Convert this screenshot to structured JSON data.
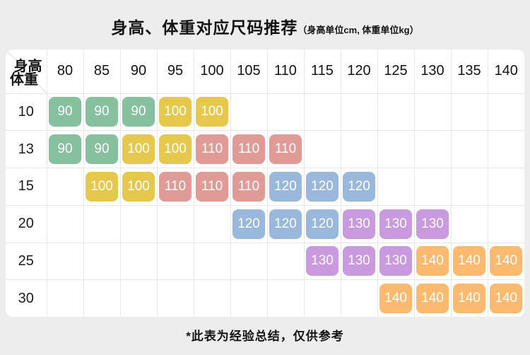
{
  "page": {
    "background": "#ededed"
  },
  "chart_data": {
    "type": "table",
    "title": "身高、体重对应尺码推荐",
    "subtitle": "（身高单位cm, 体重单位kg）",
    "corner": {
      "top_label": "身高",
      "bottom_label": "体重"
    },
    "columns": [
      "80",
      "85",
      "90",
      "95",
      "100",
      "105",
      "110",
      "115",
      "120",
      "125",
      "130",
      "135",
      "140"
    ],
    "rows": [
      {
        "label": "10",
        "cells": [
          [
            "90",
            "green"
          ],
          [
            "90",
            "green"
          ],
          [
            "90",
            "green"
          ],
          [
            "100",
            "yellow"
          ],
          [
            "100",
            "yellow"
          ],
          null,
          null,
          null,
          null,
          null,
          null,
          null,
          null
        ]
      },
      {
        "label": "13",
        "cells": [
          [
            "90",
            "green"
          ],
          [
            "90",
            "green"
          ],
          [
            "100",
            "yellow"
          ],
          [
            "100",
            "yellow"
          ],
          [
            "110",
            "pink"
          ],
          [
            "110",
            "pink"
          ],
          [
            "110",
            "pink"
          ],
          null,
          null,
          null,
          null,
          null,
          null
        ]
      },
      {
        "label": "15",
        "cells": [
          null,
          [
            "100",
            "yellow"
          ],
          [
            "100",
            "yellow"
          ],
          [
            "110",
            "pink"
          ],
          [
            "110",
            "pink"
          ],
          [
            "110",
            "pink"
          ],
          [
            "120",
            "blue"
          ],
          [
            "120",
            "blue"
          ],
          [
            "120",
            "blue"
          ],
          null,
          null,
          null,
          null
        ]
      },
      {
        "label": "20",
        "cells": [
          null,
          null,
          null,
          null,
          null,
          [
            "120",
            "blue"
          ],
          [
            "120",
            "blue"
          ],
          [
            "120",
            "blue"
          ],
          [
            "130",
            "purple"
          ],
          [
            "130",
            "purple"
          ],
          [
            "130",
            "purple"
          ],
          null,
          null
        ]
      },
      {
        "label": "25",
        "cells": [
          null,
          null,
          null,
          null,
          null,
          null,
          null,
          [
            "130",
            "purple"
          ],
          [
            "130",
            "purple"
          ],
          [
            "130",
            "purple"
          ],
          [
            "140",
            "orange"
          ],
          [
            "140",
            "orange"
          ],
          [
            "140",
            "orange"
          ]
        ]
      },
      {
        "label": "30",
        "cells": [
          null,
          null,
          null,
          null,
          null,
          null,
          null,
          null,
          null,
          [
            "140",
            "orange"
          ],
          [
            "140",
            "orange"
          ],
          [
            "140",
            "orange"
          ],
          [
            "140",
            "orange"
          ]
        ]
      }
    ],
    "colors": {
      "green": "#87c09e",
      "yellow": "#e6c94c",
      "pink": "#e09b97",
      "blue": "#9ab8dc",
      "purple": "#ca9ade",
      "orange": "#fcba70"
    },
    "footnote": "*此表为经验总结，仅供参考",
    "legend_position": "none",
    "grid": true
  }
}
